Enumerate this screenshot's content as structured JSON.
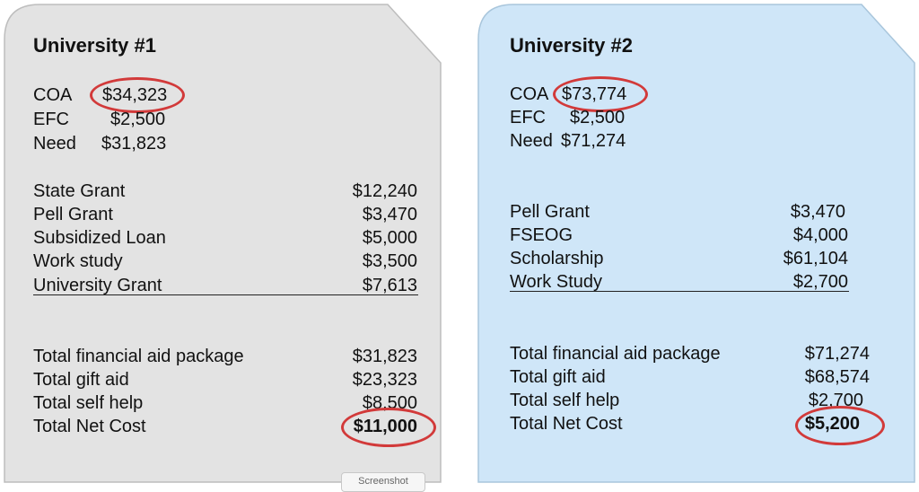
{
  "colors": {
    "card1_fill": "#e3e3e3",
    "card2_fill": "#cfe6f8",
    "highlight_circle": "#d23a3a"
  },
  "uni1": {
    "title": "University #1",
    "coa_label": "COA",
    "coa_value": "$34,323",
    "efc_label": "EFC",
    "efc_value": "$2,500",
    "need_label": "Need",
    "need_value": "$31,823",
    "aid": [
      {
        "label": "State Grant",
        "value": "$12,240"
      },
      {
        "label": "Pell Grant",
        "value": "$3,470"
      },
      {
        "label": "Subsidized Loan",
        "value": "$5,000"
      },
      {
        "label": "Work study",
        "value": "$3,500"
      },
      {
        "label": "University Grant",
        "value": "$7,613"
      }
    ],
    "totals": [
      {
        "label": "Total financial aid package",
        "value": "$31,823"
      },
      {
        "label": "Total gift aid",
        "value": "$23,323"
      },
      {
        "label": "Total self help",
        "value": "$8,500"
      },
      {
        "label": "Total Net Cost",
        "value": "$11,000"
      }
    ]
  },
  "uni2": {
    "title": "University #2",
    "coa_label": "COA",
    "coa_value": "$73,774",
    "efc_label": "EFC",
    "efc_value": "$2,500",
    "need_label": "Need",
    "need_value": "$71,274",
    "aid": [
      {
        "label": "Pell Grant",
        "value": "$3,470"
      },
      {
        "label": "FSEOG",
        "value": "$4,000"
      },
      {
        "label": "Scholarship",
        "value": "$61,104"
      },
      {
        "label": "Work Study",
        "value": "$2,700"
      }
    ],
    "totals": [
      {
        "label": "Total financial aid package",
        "value": "$71,274"
      },
      {
        "label": "Total gift aid",
        "value": "$68,574"
      },
      {
        "label": "Total self help",
        "value": "$2,700"
      },
      {
        "label": "Total Net Cost",
        "value": "$5,200"
      }
    ]
  },
  "screenshot_tab": "Screenshot"
}
